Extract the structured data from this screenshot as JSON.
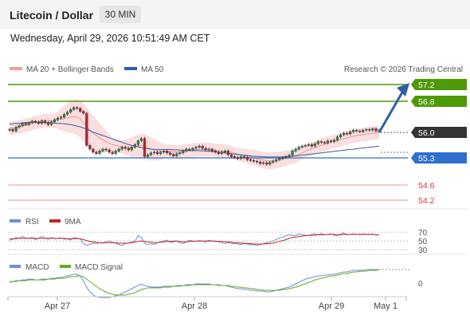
{
  "header": {
    "title": "Litecoin / Dollar",
    "timeframe": "30 MIN"
  },
  "timestamp": "Wednesday, April 29, 2026 10:51:49 AM CET",
  "legend": {
    "bollinger": "MA 20 + Bollinger Bands",
    "ma50": "MA 50",
    "credit": "Research © 2026 Trading Central"
  },
  "rsi_legend": {
    "rsi": "RSI",
    "ma": "9MA"
  },
  "macd_legend": {
    "macd": "MACD",
    "signal": "MACD Signal"
  },
  "colors": {
    "bollinger": "#f7b5b5",
    "ma50": "#2f5faa",
    "resistance": "#4e9a06",
    "support": "#2e6fd0",
    "price": "#333333",
    "light_level": "#f2b8b8",
    "up_candle": "#2f8a3a",
    "down_candle": "#c0202b",
    "arrow": "#2f5faa",
    "rsi": "#6d8fd8",
    "rsi_ma": "#cc2222",
    "macd": "#6d8fd8",
    "macd_signal": "#66aa22"
  },
  "chart_data": [
    {
      "type": "candlestick",
      "title": "Litecoin / Dollar",
      "timeframe": "30 MIN",
      "x_tick_labels": [
        "Apr 27",
        "Apr 28",
        "Apr 29",
        "May 1"
      ],
      "ylim": [
        54.0,
        57.4
      ],
      "levels": [
        {
          "value": 57.2,
          "label": "57.2",
          "kind": "resistance"
        },
        {
          "value": 56.8,
          "label": "56.8",
          "kind": "resistance"
        },
        {
          "value": 56.0,
          "label": "56.0",
          "kind": "last-price"
        },
        {
          "value": 55.3,
          "label": "55.3",
          "kind": "support"
        },
        {
          "value": 54.6,
          "label": "54.6",
          "kind": "minor"
        },
        {
          "value": 54.2,
          "label": "54.2",
          "kind": "minor"
        }
      ],
      "support_line": 55.35,
      "upper_green_lines": [
        57.03,
        56.76
      ],
      "close": [
        56.02,
        55.98,
        56.08,
        56.12,
        56.18,
        56.15,
        56.2,
        56.24,
        56.22,
        56.18,
        56.25,
        56.2,
        56.15,
        56.22,
        56.28,
        56.32,
        56.35,
        56.42,
        56.48,
        56.55,
        56.6,
        56.58,
        56.5,
        56.45,
        55.6,
        55.5,
        55.42,
        55.38,
        55.45,
        55.5,
        55.48,
        55.42,
        55.38,
        55.45,
        55.5,
        55.55,
        55.52,
        55.48,
        55.55,
        55.62,
        55.72,
        55.78,
        55.3,
        55.35,
        55.4,
        55.42,
        55.38,
        55.42,
        55.45,
        55.4,
        55.36,
        55.32,
        55.38,
        55.4,
        55.45,
        55.5,
        55.48,
        55.52,
        55.55,
        55.58,
        55.52,
        55.48,
        55.5,
        55.45,
        55.42,
        55.38,
        55.42,
        55.45,
        55.35,
        55.3,
        55.28,
        55.25,
        55.3,
        55.28,
        55.22,
        55.2,
        55.18,
        55.16,
        55.12,
        55.14,
        55.1,
        55.15,
        55.18,
        55.22,
        55.25,
        55.28,
        55.3,
        55.34,
        55.45,
        55.5,
        55.55,
        55.58,
        55.6,
        55.62,
        55.58,
        55.64,
        55.7,
        55.68,
        55.66,
        55.72,
        55.7,
        55.74,
        55.82,
        55.88,
        55.92,
        55.9,
        55.96,
        56.0,
        55.98,
        55.96,
        56.0,
        56.02,
        56.0,
        56.04,
        55.98,
        56.0
      ],
      "ma20": [
        56.05,
        56.06,
        56.07,
        56.09,
        56.11,
        56.13,
        56.15,
        56.18,
        56.2,
        56.22,
        56.24,
        56.25,
        56.26,
        56.25,
        56.26,
        56.27,
        56.29,
        56.31,
        56.33,
        56.35,
        56.36,
        56.35,
        56.3,
        56.2,
        56.1,
        56.0,
        55.92,
        55.86,
        55.8,
        55.75,
        55.7,
        55.66,
        55.62,
        55.6,
        55.58,
        55.56,
        55.55,
        55.55,
        55.55,
        55.56,
        55.58,
        55.6,
        55.58,
        55.54,
        55.5,
        55.48,
        55.46,
        55.45,
        55.44,
        55.44,
        55.44,
        55.43,
        55.42,
        55.43,
        55.44,
        55.45,
        55.46,
        55.47,
        55.48,
        55.49,
        55.49,
        55.49,
        55.49,
        55.48,
        55.47,
        55.46,
        55.45,
        55.44,
        55.43,
        55.41,
        55.39,
        55.37,
        55.35,
        55.33,
        55.31,
        55.29,
        55.27,
        55.25,
        55.23,
        55.21,
        55.19,
        55.19,
        55.2,
        55.21,
        55.22,
        55.24,
        55.26,
        55.28,
        55.3,
        55.33,
        55.36,
        55.4,
        55.44,
        55.48,
        55.51,
        55.54,
        55.57,
        55.6,
        55.63,
        55.66,
        55.68,
        55.7,
        55.72,
        55.75,
        55.78,
        55.8,
        55.82,
        55.84,
        55.86,
        55.87,
        55.88,
        55.9,
        55.91,
        55.92,
        55.93,
        55.94
      ],
      "ma50": [
        56.16,
        56.17,
        56.18,
        56.18,
        56.19,
        56.2,
        56.2,
        56.21,
        56.21,
        56.21,
        56.21,
        56.2,
        56.2,
        56.2,
        56.19,
        56.18,
        56.18,
        56.17,
        56.16,
        56.15,
        56.13,
        56.11,
        56.09,
        56.06,
        56.03,
        55.99,
        55.95,
        55.92,
        55.89,
        55.86,
        55.83,
        55.8,
        55.77,
        55.74,
        55.71,
        55.68,
        55.65,
        55.62,
        55.6,
        55.58,
        55.56,
        55.54,
        55.52,
        55.51,
        55.5,
        55.49,
        55.49,
        55.49,
        55.49,
        55.49,
        55.49,
        55.48,
        55.48,
        55.47,
        55.47,
        55.47,
        55.46,
        55.46,
        55.46,
        55.46,
        55.45,
        55.45,
        55.44,
        55.44,
        55.43,
        55.42,
        55.41,
        55.4,
        55.39,
        55.38,
        55.37,
        55.36,
        55.35,
        55.34,
        55.33,
        55.32,
        55.31,
        55.31,
        55.3,
        55.3,
        55.29,
        55.29,
        55.29,
        55.29,
        55.29,
        55.29,
        55.3,
        55.3,
        55.31,
        55.32,
        55.33,
        55.34,
        55.35,
        55.36,
        55.37,
        55.38,
        55.39,
        55.4,
        55.41,
        55.42,
        55.43,
        55.44,
        55.45,
        55.46,
        55.47,
        55.48,
        55.49,
        55.5,
        55.51,
        55.52,
        55.53,
        55.54,
        55.55,
        55.56,
        55.57,
        55.58
      ],
      "forecast_arrow": {
        "from": 56.0,
        "to": 57.2
      }
    },
    {
      "type": "line",
      "name": "RSI",
      "series": [
        {
          "name": "RSI"
        },
        {
          "name": "9MA"
        }
      ],
      "y_ticks": [
        30,
        50,
        70
      ],
      "rsi": [
        52,
        54,
        58,
        56,
        60,
        57,
        55,
        58,
        53,
        56,
        60,
        57,
        54,
        58,
        55,
        56,
        57,
        54,
        55,
        52,
        58,
        56,
        55,
        44,
        40,
        42,
        45,
        44,
        46,
        45,
        48,
        50,
        47,
        45,
        42,
        40,
        44,
        45,
        48,
        50,
        62,
        58,
        45,
        42,
        44,
        42,
        46,
        48,
        50,
        52,
        47,
        48,
        50,
        46,
        44,
        48,
        52,
        50,
        49,
        51,
        50,
        48,
        52,
        50,
        49,
        48,
        47,
        44,
        46,
        45,
        44,
        43,
        42,
        44,
        43,
        41,
        42,
        40,
        42,
        44,
        46,
        48,
        50,
        54,
        57,
        58,
        62,
        64,
        63,
        62,
        66,
        64,
        63,
        62,
        65,
        66,
        64,
        67,
        64,
        65,
        66,
        63,
        62,
        66,
        68,
        64,
        65,
        66,
        65,
        64,
        66,
        65,
        64,
        66,
        63,
        64
      ],
      "rsi_ma": [
        55,
        55,
        55,
        56,
        56,
        56,
        56,
        56,
        56,
        56,
        56,
        56,
        56,
        56,
        56,
        56,
        56,
        56,
        55,
        55,
        55,
        55,
        55,
        53,
        51,
        49,
        48,
        47,
        46,
        46,
        46,
        46,
        46,
        46,
        45,
        45,
        45,
        45,
        46,
        47,
        49,
        50,
        49,
        48,
        47,
        46,
        46,
        47,
        48,
        49,
        49,
        50,
        50,
        49,
        48,
        48,
        49,
        49,
        50,
        50,
        50,
        50,
        50,
        50,
        50,
        49,
        49,
        48,
        48,
        47,
        46,
        46,
        45,
        45,
        44,
        44,
        43,
        43,
        43,
        43,
        44,
        44,
        45,
        47,
        49,
        51,
        53,
        56,
        58,
        59,
        60,
        61,
        62,
        62,
        63,
        63,
        64,
        64,
        64,
        65,
        65,
        65,
        64,
        64,
        65,
        65,
        65,
        65,
        65,
        65,
        65,
        65,
        65,
        65,
        64,
        64
      ]
    },
    {
      "type": "line",
      "name": "MACD",
      "series": [
        {
          "name": "MACD"
        },
        {
          "name": "MACD Signal"
        }
      ],
      "y_ticks": [
        0
      ],
      "macd": [
        0.02,
        0.03,
        0.04,
        0.04,
        0.05,
        0.05,
        0.06,
        0.06,
        0.05,
        0.05,
        0.06,
        0.06,
        0.06,
        0.07,
        0.07,
        0.08,
        0.08,
        0.09,
        0.1,
        0.11,
        0.12,
        0.12,
        0.1,
        0.04,
        -0.04,
        -0.1,
        -0.14,
        -0.16,
        -0.17,
        -0.17,
        -0.17,
        -0.17,
        -0.16,
        -0.15,
        -0.14,
        -0.12,
        -0.1,
        -0.08,
        -0.06,
        -0.04,
        -0.02,
        0.0,
        -0.02,
        -0.03,
        -0.04,
        -0.04,
        -0.04,
        -0.04,
        -0.03,
        -0.03,
        -0.03,
        -0.03,
        -0.02,
        -0.02,
        -0.02,
        -0.01,
        -0.01,
        -0.01,
        0.0,
        0.0,
        0.0,
        0.0,
        0.0,
        -0.01,
        -0.01,
        -0.02,
        -0.02,
        -0.02,
        -0.03,
        -0.04,
        -0.05,
        -0.06,
        -0.06,
        -0.07,
        -0.07,
        -0.08,
        -0.08,
        -0.09,
        -0.09,
        -0.09,
        -0.1,
        -0.1,
        -0.09,
        -0.08,
        -0.07,
        -0.06,
        -0.05,
        -0.04,
        -0.02,
        0.0,
        0.02,
        0.04,
        0.06,
        0.07,
        0.08,
        0.09,
        0.1,
        0.1,
        0.11,
        0.11,
        0.12,
        0.12,
        0.13,
        0.14,
        0.15,
        0.15,
        0.16,
        0.17,
        0.17,
        0.17,
        0.17,
        0.18,
        0.18,
        0.18,
        0.18,
        0.18
      ],
      "signal": [
        0.03,
        0.03,
        0.03,
        0.04,
        0.04,
        0.04,
        0.05,
        0.05,
        0.05,
        0.05,
        0.05,
        0.05,
        0.06,
        0.06,
        0.06,
        0.07,
        0.07,
        0.07,
        0.08,
        0.09,
        0.09,
        0.1,
        0.1,
        0.09,
        0.06,
        0.03,
        0.0,
        -0.03,
        -0.06,
        -0.08,
        -0.1,
        -0.12,
        -0.13,
        -0.14,
        -0.14,
        -0.14,
        -0.14,
        -0.13,
        -0.12,
        -0.11,
        -0.09,
        -0.07,
        -0.06,
        -0.05,
        -0.05,
        -0.05,
        -0.05,
        -0.05,
        -0.04,
        -0.04,
        -0.04,
        -0.03,
        -0.03,
        -0.03,
        -0.02,
        -0.02,
        -0.02,
        -0.01,
        -0.01,
        -0.01,
        -0.01,
        -0.01,
        -0.01,
        -0.01,
        -0.01,
        -0.01,
        -0.02,
        -0.02,
        -0.02,
        -0.03,
        -0.03,
        -0.04,
        -0.04,
        -0.05,
        -0.05,
        -0.06,
        -0.06,
        -0.07,
        -0.07,
        -0.08,
        -0.08,
        -0.08,
        -0.08,
        -0.08,
        -0.08,
        -0.07,
        -0.07,
        -0.06,
        -0.05,
        -0.04,
        -0.03,
        -0.01,
        0.0,
        0.02,
        0.03,
        0.05,
        0.06,
        0.07,
        0.08,
        0.09,
        0.1,
        0.1,
        0.11,
        0.12,
        0.13,
        0.13,
        0.14,
        0.15,
        0.15,
        0.16,
        0.16,
        0.16,
        0.17,
        0.17,
        0.17,
        0.18
      ]
    }
  ]
}
